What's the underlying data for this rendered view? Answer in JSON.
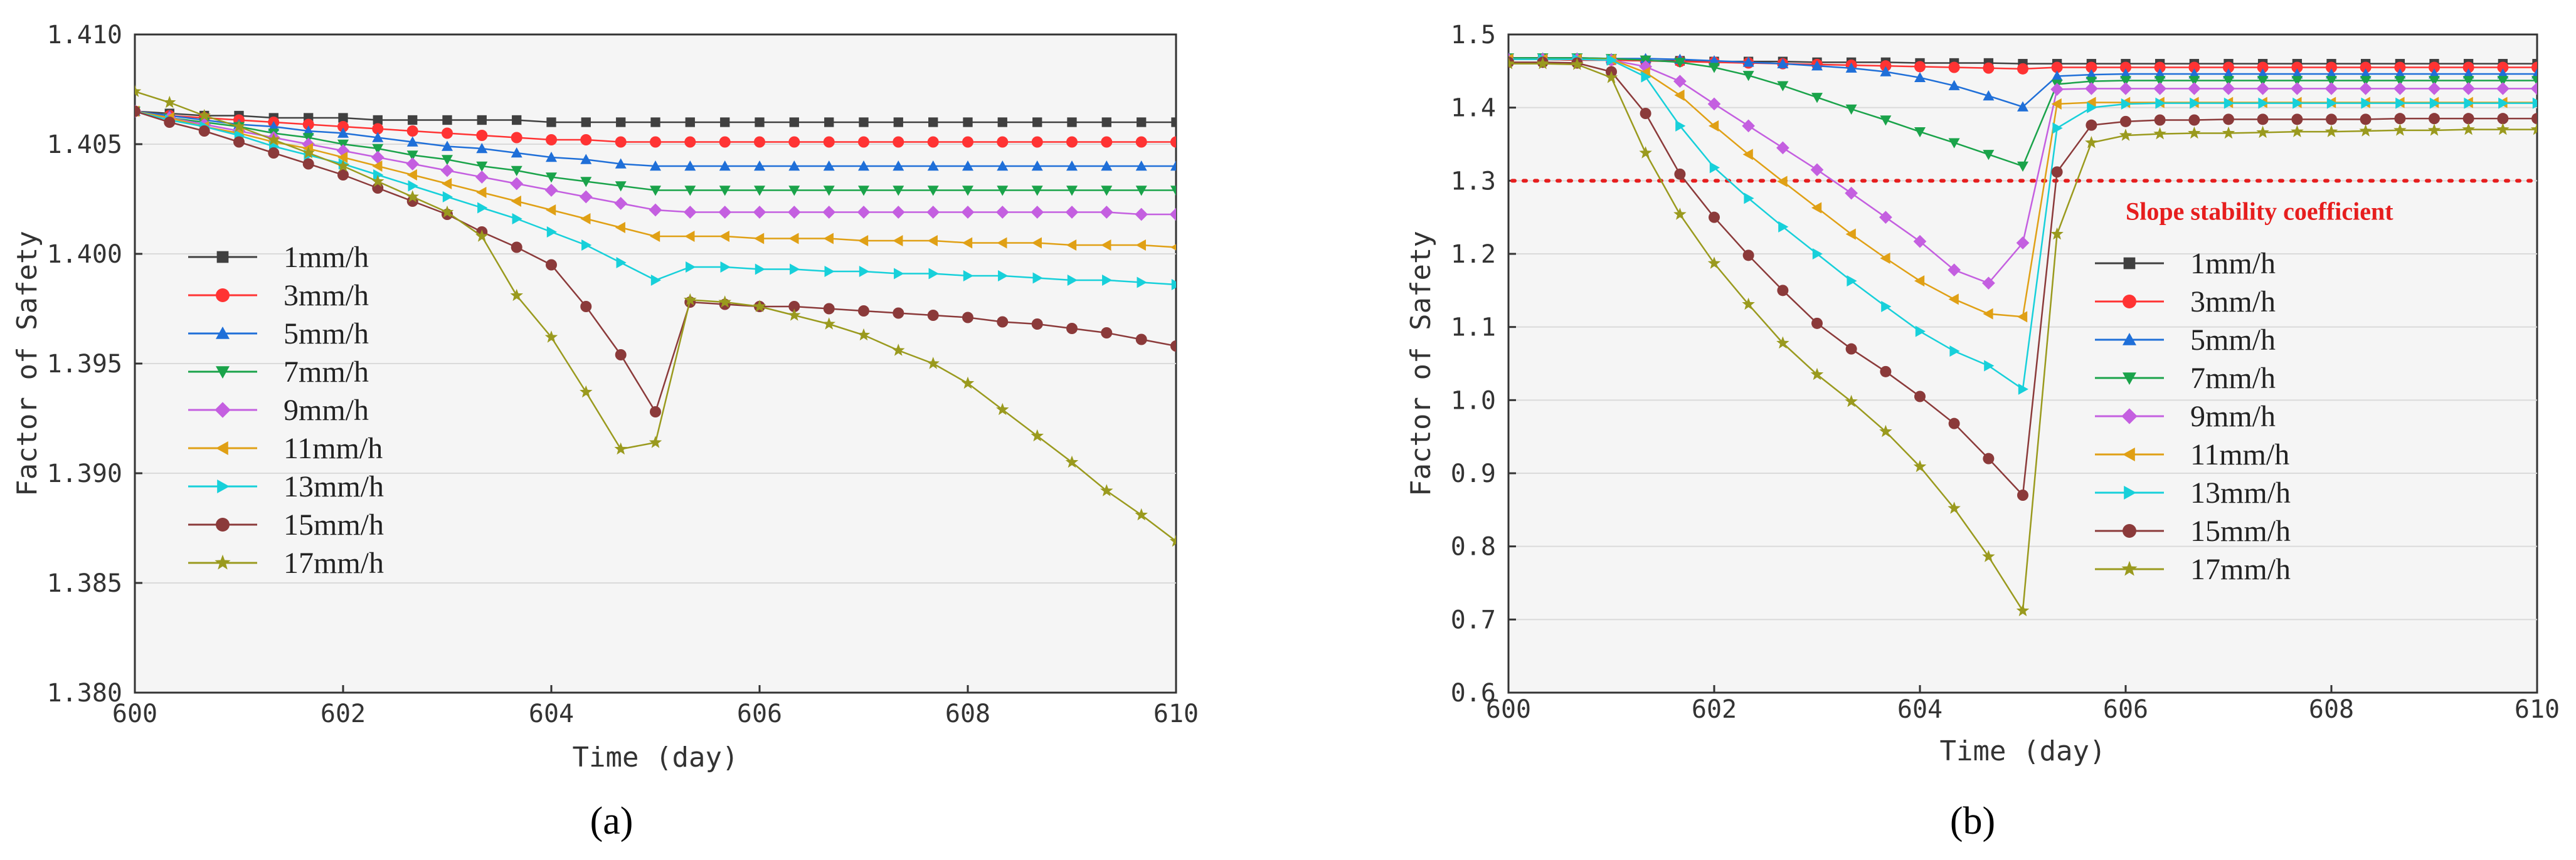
{
  "chart_data": [
    {
      "type": "line",
      "panel_label": "(a)",
      "title": "",
      "xlabel": "Time (day)",
      "ylabel": "Factor of Safety",
      "xlim": [
        600,
        610
      ],
      "ylim": [
        1.38,
        1.41
      ],
      "xticks": [
        600,
        602,
        604,
        606,
        608,
        610
      ],
      "xtick_labels": [
        "600",
        "602",
        "604",
        "606",
        "608",
        "610"
      ],
      "yticks": [
        1.38,
        1.385,
        1.39,
        1.395,
        1.4,
        1.405,
        1.41
      ],
      "ytick_labels": [
        "1.380",
        "1.385",
        "1.390",
        "1.395",
        "1.400",
        "1.405",
        "1.410"
      ],
      "grid": true,
      "legend_position": "left",
      "x": [
        600,
        600.333,
        600.667,
        601,
        601.333,
        601.667,
        602,
        602.333,
        602.667,
        603,
        603.333,
        603.667,
        604,
        604.333,
        604.667,
        605,
        605.333,
        605.667,
        606,
        606.333,
        606.667,
        607,
        607.333,
        607.667,
        608,
        608.333,
        608.667,
        609,
        609.333,
        609.667,
        610
      ],
      "series": [
        {
          "name": "1mm/h",
          "color": "#404040",
          "marker": "square",
          "values": [
            1.4065,
            1.4064,
            1.4063,
            1.4063,
            1.4062,
            1.4062,
            1.4062,
            1.4061,
            1.4061,
            1.4061,
            1.4061,
            1.4061,
            1.406,
            1.406,
            1.406,
            1.406,
            1.406,
            1.406,
            1.406,
            1.406,
            1.406,
            1.406,
            1.406,
            1.406,
            1.406,
            1.406,
            1.406,
            1.406,
            1.406,
            1.406,
            1.406
          ]
        },
        {
          "name": "3mm/h",
          "color": "#ff3333",
          "marker": "circle",
          "values": [
            1.4065,
            1.4063,
            1.4062,
            1.4061,
            1.406,
            1.4059,
            1.4058,
            1.4057,
            1.4056,
            1.4055,
            1.4054,
            1.4053,
            1.4052,
            1.4052,
            1.4051,
            1.4051,
            1.4051,
            1.4051,
            1.4051,
            1.4051,
            1.4051,
            1.4051,
            1.4051,
            1.4051,
            1.4051,
            1.4051,
            1.4051,
            1.4051,
            1.4051,
            1.4051,
            1.4051
          ]
        },
        {
          "name": "5mm/h",
          "color": "#1f6fd8",
          "marker": "triangle-up",
          "values": [
            1.4065,
            1.4063,
            1.4061,
            1.4059,
            1.4058,
            1.4056,
            1.4055,
            1.4053,
            1.4051,
            1.4049,
            1.4048,
            1.4046,
            1.4044,
            1.4043,
            1.4041,
            1.404,
            1.404,
            1.404,
            1.404,
            1.404,
            1.404,
            1.404,
            1.404,
            1.404,
            1.404,
            1.404,
            1.404,
            1.404,
            1.404,
            1.404,
            1.404
          ]
        },
        {
          "name": "7mm/h",
          "color": "#1aa34a",
          "marker": "triangle-down",
          "values": [
            1.4065,
            1.4062,
            1.406,
            1.4058,
            1.4055,
            1.4053,
            1.405,
            1.4048,
            1.4045,
            1.4043,
            1.404,
            1.4038,
            1.4035,
            1.4033,
            1.4031,
            1.4029,
            1.4029,
            1.4029,
            1.4029,
            1.4029,
            1.4029,
            1.4029,
            1.4029,
            1.4029,
            1.4029,
            1.4029,
            1.4029,
            1.4029,
            1.4029,
            1.4029,
            1.4029
          ]
        },
        {
          "name": "9mm/h",
          "color": "#c45fe0",
          "marker": "diamond",
          "values": [
            1.4065,
            1.4062,
            1.4059,
            1.4056,
            1.4053,
            1.405,
            1.4047,
            1.4044,
            1.4041,
            1.4038,
            1.4035,
            1.4032,
            1.4029,
            1.4026,
            1.4023,
            1.402,
            1.4019,
            1.4019,
            1.4019,
            1.4019,
            1.4019,
            1.4019,
            1.4019,
            1.4019,
            1.4019,
            1.4019,
            1.4019,
            1.4019,
            1.4019,
            1.4018,
            1.4018
          ]
        },
        {
          "name": "11mm/h",
          "color": "#e0a015",
          "marker": "triangle-left",
          "values": [
            1.4065,
            1.4062,
            1.4058,
            1.4055,
            1.4051,
            1.4048,
            1.4044,
            1.404,
            1.4036,
            1.4032,
            1.4028,
            1.4024,
            1.402,
            1.4016,
            1.4012,
            1.4008,
            1.4008,
            1.4008,
            1.4007,
            1.4007,
            1.4007,
            1.4006,
            1.4006,
            1.4006,
            1.4005,
            1.4005,
            1.4005,
            1.4004,
            1.4004,
            1.4004,
            1.4003
          ]
        },
        {
          "name": "13mm/h",
          "color": "#17d0da",
          "marker": "triangle-right",
          "values": [
            1.4065,
            1.4061,
            1.4058,
            1.4054,
            1.4049,
            1.4045,
            1.4041,
            1.4036,
            1.4031,
            1.4026,
            1.4021,
            1.4016,
            1.401,
            1.4004,
            1.3996,
            1.3988,
            1.3994,
            1.3994,
            1.3993,
            1.3993,
            1.3992,
            1.3992,
            1.3991,
            1.3991,
            1.399,
            1.399,
            1.3989,
            1.3988,
            1.3988,
            1.3987,
            1.3986
          ]
        },
        {
          "name": "15mm/h",
          "color": "#8b3a3a",
          "marker": "circle",
          "values": [
            1.4065,
            1.406,
            1.4056,
            1.4051,
            1.4046,
            1.4041,
            1.4036,
            1.403,
            1.4024,
            1.4018,
            1.401,
            1.4003,
            1.3995,
            1.3976,
            1.3954,
            1.3928,
            1.3978,
            1.3977,
            1.3976,
            1.3976,
            1.3975,
            1.3974,
            1.3973,
            1.3972,
            1.3971,
            1.3969,
            1.3968,
            1.3966,
            1.3964,
            1.3961,
            1.3958
          ]
        },
        {
          "name": "17mm/h",
          "color": "#9a9a1e",
          "marker": "star",
          "values": [
            1.4074,
            1.4069,
            1.4063,
            1.4058,
            1.4052,
            1.4046,
            1.404,
            1.4033,
            1.4026,
            1.4019,
            1.4008,
            1.3981,
            1.3962,
            1.3937,
            1.3911,
            1.3914,
            1.3979,
            1.3978,
            1.3976,
            1.3972,
            1.3968,
            1.3963,
            1.3956,
            1.395,
            1.3941,
            1.3929,
            1.3917,
            1.3905,
            1.3892,
            1.3881,
            1.3869
          ]
        }
      ]
    },
    {
      "type": "line",
      "panel_label": "(b)",
      "title": "",
      "xlabel": "Time (day)",
      "ylabel": "Factor of Safety",
      "xlim": [
        600,
        610
      ],
      "ylim": [
        0.6,
        1.5
      ],
      "xticks": [
        600,
        602,
        604,
        606,
        608,
        610
      ],
      "xtick_labels": [
        "600",
        "602",
        "604",
        "606",
        "608",
        "610"
      ],
      "yticks": [
        0.6,
        0.7,
        0.8,
        0.9,
        1.0,
        1.1,
        1.2,
        1.3,
        1.4,
        1.5
      ],
      "ytick_labels": [
        "0.6",
        "0.7",
        "0.8",
        "0.9",
        "1.0",
        "1.1",
        "1.2",
        "1.3",
        "1.4",
        "1.5"
      ],
      "grid": true,
      "legend_position": "right",
      "reference_line": {
        "label": "Slope stability coefficient",
        "y": 1.3,
        "color": "#e61e1e"
      },
      "x": [
        600,
        600.333,
        600.667,
        601,
        601.333,
        601.667,
        602,
        602.333,
        602.667,
        603,
        603.333,
        603.667,
        604,
        604.333,
        604.667,
        605,
        605.333,
        605.667,
        606,
        606.333,
        606.667,
        607,
        607.333,
        607.667,
        608,
        608.333,
        608.667,
        609,
        609.333,
        609.667,
        610
      ],
      "series": [
        {
          "name": "1mm/h",
          "color": "#404040",
          "marker": "square",
          "values": [
            1.466,
            1.466,
            1.465,
            1.465,
            1.464,
            1.464,
            1.463,
            1.463,
            1.463,
            1.462,
            1.462,
            1.462,
            1.461,
            1.461,
            1.461,
            1.46,
            1.46,
            1.46,
            1.46,
            1.46,
            1.46,
            1.46,
            1.46,
            1.46,
            1.46,
            1.46,
            1.46,
            1.46,
            1.46,
            1.46,
            1.46
          ]
        },
        {
          "name": "3mm/h",
          "color": "#ff3333",
          "marker": "circle",
          "values": [
            1.466,
            1.466,
            1.465,
            1.465,
            1.464,
            1.463,
            1.462,
            1.461,
            1.46,
            1.459,
            1.458,
            1.457,
            1.456,
            1.455,
            1.454,
            1.453,
            1.455,
            1.455,
            1.455,
            1.455,
            1.455,
            1.455,
            1.455,
            1.455,
            1.455,
            1.455,
            1.455,
            1.455,
            1.455,
            1.455,
            1.455
          ]
        },
        {
          "name": "5mm/h",
          "color": "#1f6fd8",
          "marker": "triangle-up",
          "values": [
            1.468,
            1.468,
            1.468,
            1.467,
            1.467,
            1.466,
            1.464,
            1.462,
            1.46,
            1.457,
            1.454,
            1.449,
            1.441,
            1.43,
            1.416,
            1.401,
            1.443,
            1.445,
            1.446,
            1.446,
            1.446,
            1.446,
            1.446,
            1.446,
            1.446,
            1.446,
            1.446,
            1.446,
            1.446,
            1.446,
            1.446
          ]
        },
        {
          "name": "7mm/h",
          "color": "#1aa34a",
          "marker": "triangle-down",
          "values": [
            1.468,
            1.468,
            1.468,
            1.467,
            1.465,
            1.462,
            1.455,
            1.444,
            1.43,
            1.414,
            1.398,
            1.383,
            1.367,
            1.352,
            1.336,
            1.32,
            1.432,
            1.436,
            1.437,
            1.437,
            1.437,
            1.437,
            1.437,
            1.437,
            1.437,
            1.437,
            1.437,
            1.437,
            1.437,
            1.437,
            1.437
          ]
        },
        {
          "name": "9mm/h",
          "color": "#c45fe0",
          "marker": "diamond",
          "values": [
            1.466,
            1.466,
            1.466,
            1.465,
            1.456,
            1.436,
            1.405,
            1.375,
            1.345,
            1.315,
            1.283,
            1.25,
            1.217,
            1.178,
            1.16,
            1.215,
            1.425,
            1.426,
            1.426,
            1.426,
            1.426,
            1.426,
            1.426,
            1.426,
            1.426,
            1.426,
            1.426,
            1.426,
            1.426,
            1.426,
            1.426
          ]
        },
        {
          "name": "11mm/h",
          "color": "#e0a015",
          "marker": "triangle-left",
          "values": [
            1.466,
            1.466,
            1.466,
            1.466,
            1.448,
            1.417,
            1.375,
            1.336,
            1.299,
            1.263,
            1.227,
            1.194,
            1.163,
            1.138,
            1.118,
            1.114,
            1.405,
            1.407,
            1.407,
            1.407,
            1.407,
            1.407,
            1.407,
            1.407,
            1.407,
            1.407,
            1.407,
            1.407,
            1.407,
            1.407,
            1.407
          ]
        },
        {
          "name": "13mm/h",
          "color": "#17d0da",
          "marker": "triangle-right",
          "values": [
            1.466,
            1.466,
            1.466,
            1.465,
            1.442,
            1.375,
            1.318,
            1.276,
            1.237,
            1.2,
            1.163,
            1.128,
            1.094,
            1.067,
            1.047,
            1.015,
            1.372,
            1.4,
            1.405,
            1.406,
            1.406,
            1.406,
            1.406,
            1.406,
            1.406,
            1.406,
            1.406,
            1.406,
            1.406,
            1.406,
            1.406
          ]
        },
        {
          "name": "15mm/h",
          "color": "#8b3a3a",
          "marker": "circle",
          "values": [
            1.462,
            1.462,
            1.461,
            1.449,
            1.392,
            1.309,
            1.25,
            1.198,
            1.15,
            1.105,
            1.07,
            1.039,
            1.005,
            0.968,
            0.92,
            0.87,
            1.312,
            1.376,
            1.381,
            1.383,
            1.383,
            1.384,
            1.384,
            1.384,
            1.384,
            1.384,
            1.385,
            1.385,
            1.385,
            1.385,
            1.385
          ]
        },
        {
          "name": "17mm/h",
          "color": "#9a9a1e",
          "marker": "star",
          "values": [
            1.46,
            1.46,
            1.459,
            1.441,
            1.338,
            1.254,
            1.187,
            1.131,
            1.078,
            1.035,
            0.998,
            0.957,
            0.909,
            0.852,
            0.786,
            0.712,
            1.227,
            1.352,
            1.362,
            1.364,
            1.365,
            1.365,
            1.366,
            1.367,
            1.367,
            1.368,
            1.369,
            1.369,
            1.37,
            1.37,
            1.37
          ]
        }
      ]
    }
  ]
}
